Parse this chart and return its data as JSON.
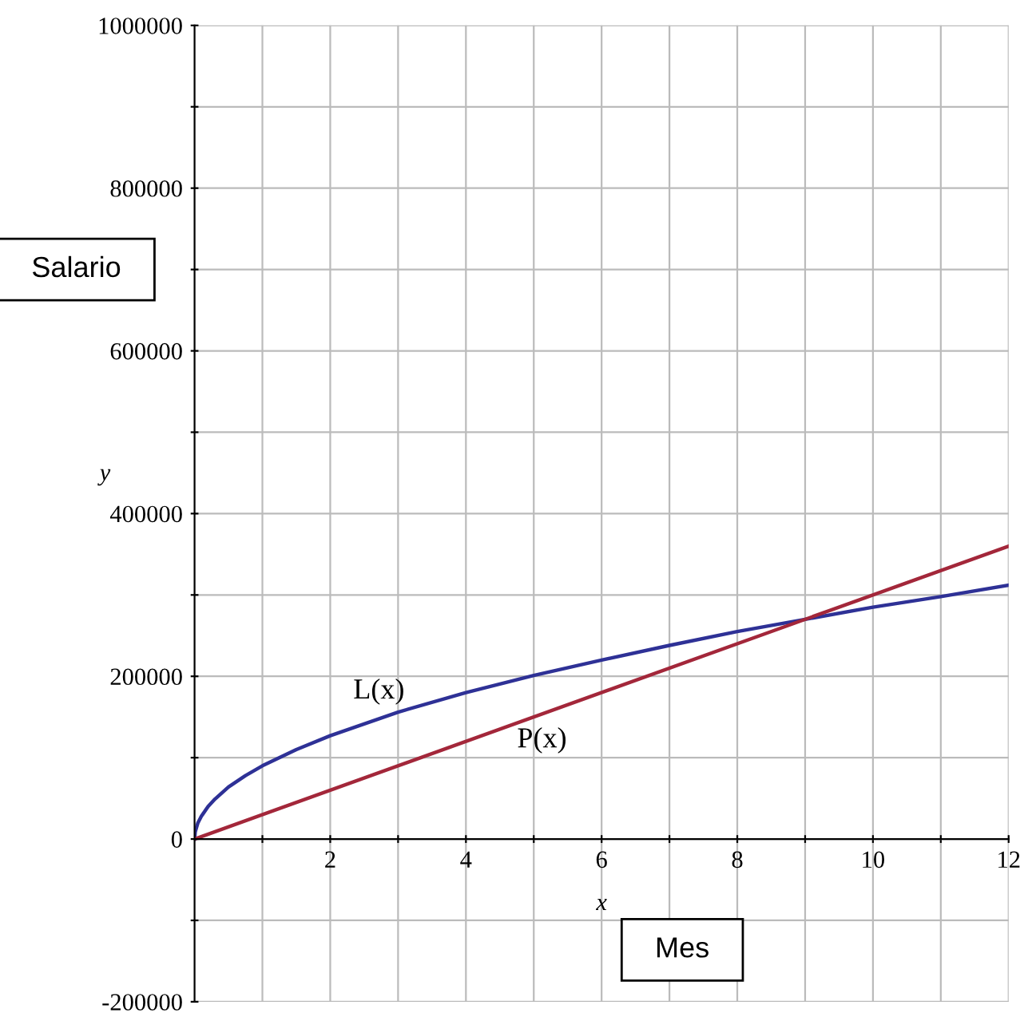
{
  "chart_data": {
    "type": "line",
    "xlabel": "x",
    "ylabel": "y",
    "xlim": [
      0,
      12
    ],
    "ylim": [
      -200000,
      1000000
    ],
    "xticks": [
      {
        "value": 1,
        "label": null
      },
      2,
      {
        "value": 3,
        "label": null
      },
      4,
      {
        "value": 5,
        "label": null
      },
      6,
      {
        "value": 7,
        "label": null
      },
      8,
      {
        "value": 9,
        "label": null
      },
      10,
      {
        "value": 11,
        "label": null
      },
      12
    ],
    "yticks": [
      -200000,
      {
        "value": -100000,
        "label": null
      },
      0,
      {
        "value": 100000,
        "label": null
      },
      200000,
      {
        "value": 300000,
        "label": null
      },
      400000,
      {
        "value": 500000,
        "label": null
      },
      600000,
      {
        "value": 700000,
        "label": null
      },
      800000,
      {
        "value": 900000,
        "label": null
      },
      1000000
    ],
    "grid": true,
    "legend": false,
    "marker": "none",
    "line_style": "solid",
    "series": [
      {
        "color": "#2e3196",
        "x": [
          0,
          0.01,
          0.05,
          0.1,
          0.2,
          0.3,
          0.5,
          0.75,
          1,
          1.5,
          2,
          3,
          4,
          5,
          6,
          7,
          8,
          9,
          10,
          11,
          12
        ],
        "values": [
          0,
          9000,
          20000,
          28000,
          40000,
          49000,
          64000,
          78000,
          90000,
          110000,
          127000,
          156000,
          180000,
          201000,
          220000,
          238000,
          255000,
          270000,
          285000,
          298000,
          312000
        ]
      },
      {
        "color": "#a3273a",
        "x": [
          0,
          12
        ],
        "values": [
          0,
          360000
        ]
      }
    ],
    "annotations": [
      "L(x)",
      "P(x)",
      "Salario",
      "Mes"
    ]
  }
}
